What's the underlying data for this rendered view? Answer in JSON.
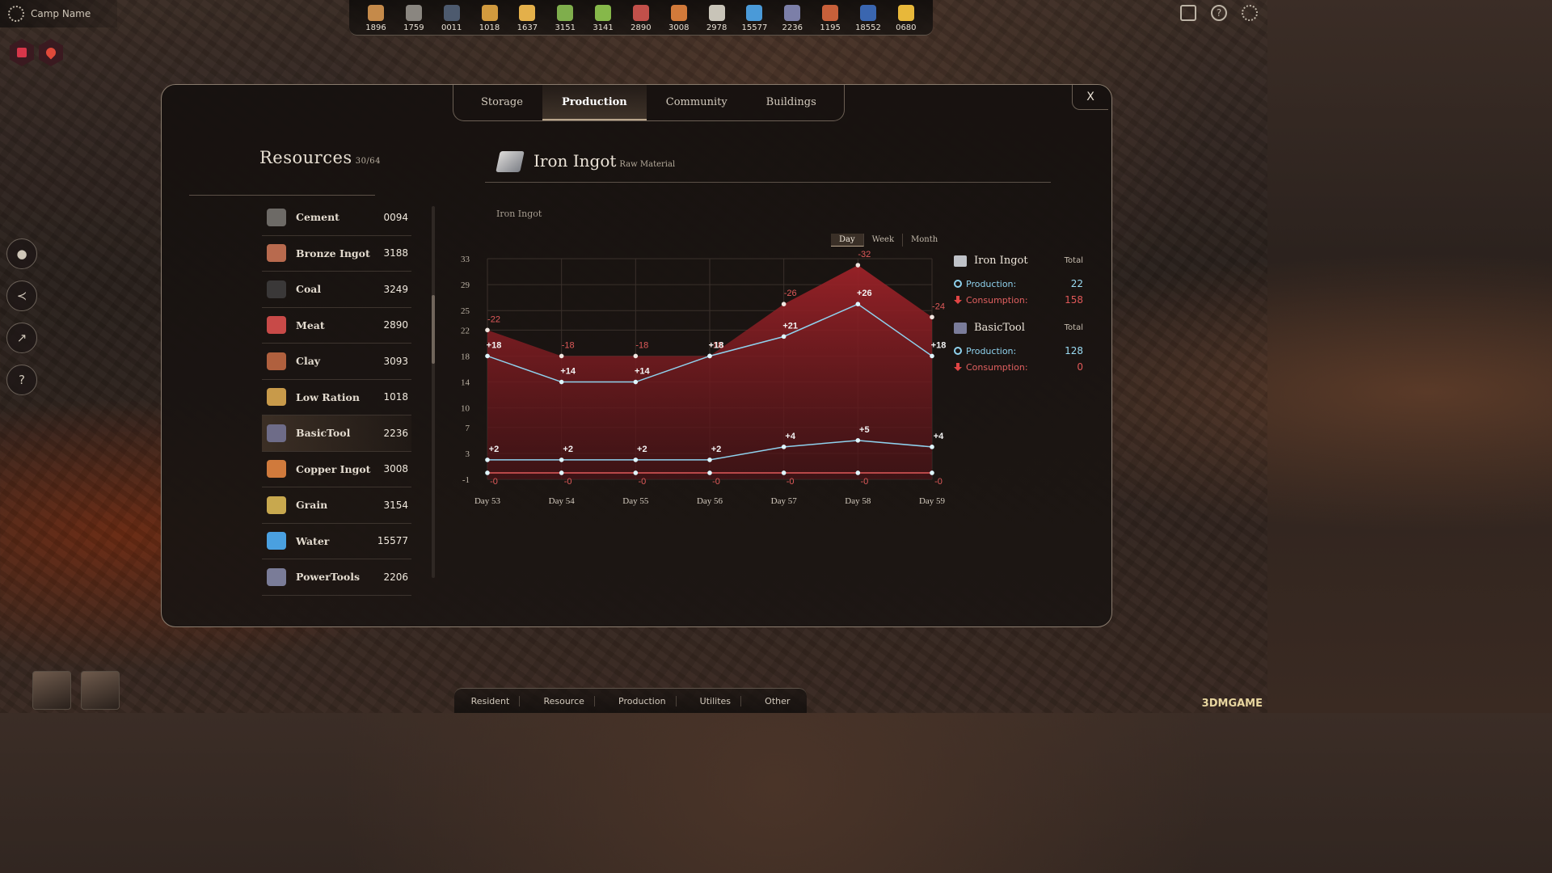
{
  "camp": {
    "name": "Camp Name"
  },
  "resources_bar": [
    {
      "icon": "wood-icon",
      "color": "#c58a4a",
      "value": "1896"
    },
    {
      "icon": "stone-icon",
      "color": "#8a8680",
      "value": "1759"
    },
    {
      "icon": "coal-icon",
      "color": "#4d5a6e",
      "value": "0011"
    },
    {
      "icon": "ration-icon",
      "color": "#d19a3e",
      "value": "1018"
    },
    {
      "icon": "beer-icon",
      "color": "#e4b04a",
      "value": "1637"
    },
    {
      "icon": "herb-icon",
      "color": "#7fae4c",
      "value": "3151"
    },
    {
      "icon": "grass-icon",
      "color": "#86b84a",
      "value": "3141"
    },
    {
      "icon": "meat-icon",
      "color": "#c2504a",
      "value": "2890"
    },
    {
      "icon": "copper-ingot-icon",
      "color": "#d27a3a",
      "value": "3008"
    },
    {
      "icon": "bottle-icon",
      "color": "#c8c4b8",
      "value": "2978"
    },
    {
      "icon": "water-icon",
      "color": "#4a9ad8",
      "value": "15577"
    },
    {
      "icon": "tool-icon",
      "color": "#7c7fa8",
      "value": "2236"
    },
    {
      "icon": "brick-icon",
      "color": "#c8603a",
      "value": "1195"
    },
    {
      "icon": "bucket-icon",
      "color": "#3a66b0",
      "value": "18552"
    },
    {
      "icon": "power-icon",
      "color": "#e8b83a",
      "value": "0680"
    }
  ],
  "tabs": [
    "Storage",
    "Production",
    "Community",
    "Buildings"
  ],
  "close_label": "X",
  "resources": {
    "title": "Resources",
    "count": "30/64",
    "items": [
      {
        "name": "Cement",
        "value": "0094",
        "icon": "cement-icon",
        "color": "#6d6a66"
      },
      {
        "name": "Bronze Ingot",
        "value": "3188",
        "icon": "bronze-ingot-icon",
        "color": "#b86a4e"
      },
      {
        "name": "Coal",
        "value": "3249",
        "icon": "coal-icon",
        "color": "#3a3838"
      },
      {
        "name": "Meat",
        "value": "2890",
        "icon": "meat-icon",
        "color": "#c84a48"
      },
      {
        "name": "Clay",
        "value": "3093",
        "icon": "clay-icon",
        "color": "#b0603e"
      },
      {
        "name": "Low Ration",
        "value": "1018",
        "icon": "low-ration-icon",
        "color": "#c89a4a"
      },
      {
        "name": "BasicTool",
        "value": "2236",
        "icon": "basic-tool-icon",
        "color": "#6e6c88"
      },
      {
        "name": "Copper Ingot",
        "value": "3008",
        "icon": "copper-ingot-icon",
        "color": "#d07a3c"
      },
      {
        "name": "Grain",
        "value": "3154",
        "icon": "grain-icon",
        "color": "#c8a84e"
      },
      {
        "name": "Water",
        "value": "15577",
        "icon": "water-icon",
        "color": "#4aa0e0"
      },
      {
        "name": "PowerTools",
        "value": "2206",
        "icon": "power-tools-icon",
        "color": "#7a7c98"
      }
    ]
  },
  "detail": {
    "title": "Iron Ingot",
    "subtitle": "Raw Material",
    "chart_caption": "Iron Ingot",
    "periods": [
      "Day",
      "Week",
      "Month"
    ],
    "active_period": "Day"
  },
  "legend": [
    {
      "name": "Iron Ingot",
      "total_label": "Total",
      "icon": "iron-ingot-icon",
      "production_label": "Production:",
      "production": "22",
      "consumption_label": "Consumption:",
      "consumption": "158"
    },
    {
      "name": "BasicTool",
      "total_label": "Total",
      "icon": "basic-tool-icon",
      "production_label": "Production:",
      "production": "128",
      "consumption_label": "Consumption:",
      "consumption": "0"
    }
  ],
  "chart_data": {
    "type": "line",
    "x": [
      "Day 53",
      "Day 54",
      "Day 55",
      "Day 56",
      "Day 57",
      "Day 58",
      "Day 59"
    ],
    "yticks": [
      33,
      29,
      25,
      22,
      18,
      14,
      10,
      7,
      3,
      -1
    ],
    "ylim": [
      -1,
      33
    ],
    "grid": true,
    "series": [
      {
        "name": "Iron Ingot",
        "kind": "consumption",
        "values": [
          22,
          18,
          18,
          18,
          26,
          32,
          24
        ],
        "labels": [
          "-22",
          "-18",
          "-18",
          "-18",
          "-26",
          "-32",
          "-24"
        ]
      },
      {
        "name": "Iron Ingot",
        "kind": "production",
        "values": [
          18,
          14,
          14,
          18,
          21,
          26,
          18
        ],
        "labels": [
          "+18",
          "+14",
          "+14",
          "+18",
          "+21",
          "+26",
          "+18"
        ]
      },
      {
        "name": "BasicTool",
        "kind": "production",
        "values": [
          2,
          2,
          2,
          2,
          4,
          5,
          4
        ],
        "labels": [
          "+2",
          "+2",
          "+2",
          "+2",
          "+4",
          "+5",
          "+4"
        ]
      },
      {
        "name": "BasicTool",
        "kind": "consumption",
        "values": [
          0,
          0,
          0,
          0,
          0,
          0,
          0
        ],
        "labels": [
          "-0",
          "-0",
          "-0",
          "-0",
          "-0",
          "-0",
          "-0"
        ]
      }
    ],
    "colors": {
      "consumption": "#e05a5a",
      "production": "#8fd2ee",
      "fill": "#8a1f24"
    }
  },
  "bottom_nav": [
    "Resident",
    "Resource",
    "Production",
    "Utilites",
    "Other"
  ],
  "watermark": "3DMGAME"
}
